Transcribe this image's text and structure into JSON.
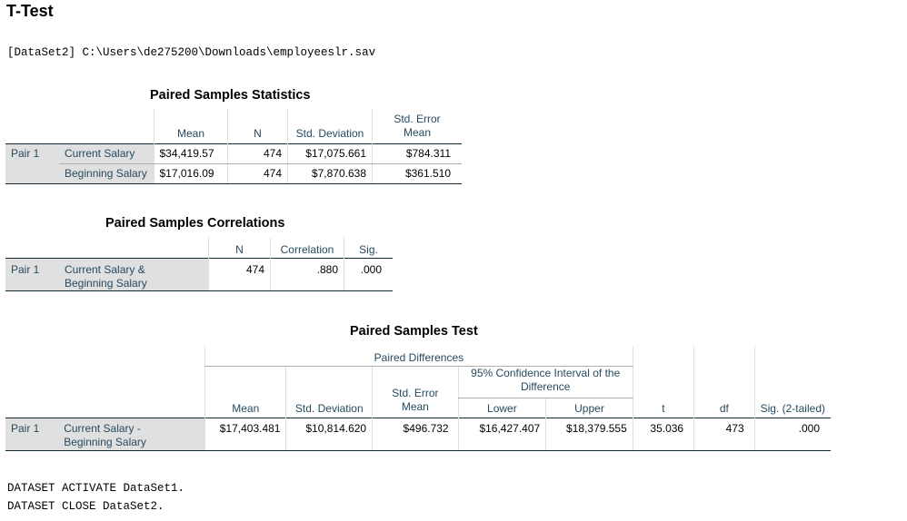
{
  "heading": "T-Test",
  "dataset_line": "[DataSet2] C:\\Users\\de275200\\Downloads\\employeeslr.sav",
  "stats": {
    "title": "Paired Samples Statistics",
    "headers": [
      "Mean",
      "N",
      "Std. Deviation",
      "Std. Error Mean"
    ],
    "std_err_line1": "Std. Error",
    "std_err_line2": "Mean",
    "pair_label": "Pair 1",
    "rows": [
      {
        "label": "Current Salary",
        "mean": "$34,419.57",
        "n": "474",
        "sd": "$17,075.661",
        "se": "$784.311"
      },
      {
        "label": "Beginning Salary",
        "mean": "$17,016.09",
        "n": "474",
        "sd": "$7,870.638",
        "se": "$361.510"
      }
    ]
  },
  "corr": {
    "title": "Paired Samples Correlations",
    "headers": [
      "N",
      "Correlation",
      "Sig."
    ],
    "pair_label": "Pair 1",
    "label_line1": "Current Salary &",
    "label_line2": "Beginning Salary",
    "n": "474",
    "correlation": ".880",
    "sig": ".000"
  },
  "test": {
    "title": "Paired Samples Test",
    "paired_diff": "Paired Differences",
    "ci_line1": "95% Confidence Interval of the",
    "ci_line2": "Difference",
    "headers": {
      "mean": "Mean",
      "sd": "Std. Deviation",
      "se_line1": "Std. Error",
      "se_line2": "Mean",
      "lower": "Lower",
      "upper": "Upper",
      "t": "t",
      "df": "df",
      "sig": "Sig. (2-tailed)"
    },
    "pair_label": "Pair 1",
    "label_line1": "Current Salary -",
    "label_line2": "Beginning Salary",
    "mean": "$17,403.481",
    "sd": "$10,814.620",
    "se": "$496.732",
    "lower": "$16,427.407",
    "upper": "$18,379.555",
    "t": "35.036",
    "df": "473",
    "sig": ".000"
  },
  "syntax": [
    "DATASET ACTIVATE DataSet1.",
    "DATASET CLOSE DataSet2."
  ]
}
